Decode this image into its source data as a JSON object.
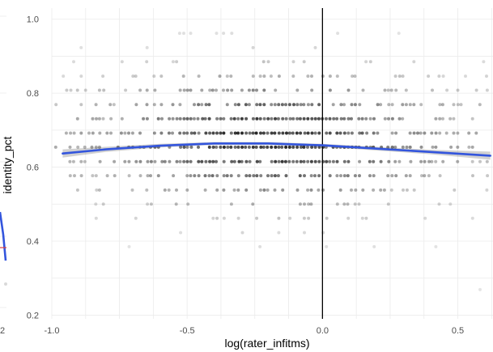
{
  "chart_data": {
    "type": "scatter",
    "title": "",
    "xlabel": "log(rater_infitms)",
    "ylabel": "identity_pct",
    "xlim": [
      -1.0,
      0.63
    ],
    "ylim": [
      0.19,
      1.03
    ],
    "x_ticks": [
      -1.0,
      -0.5,
      0.0,
      0.5
    ],
    "x_tick_labels": [
      "-1.0",
      "-0.5",
      "0.0",
      "0.5"
    ],
    "y_ticks": [
      0.2,
      0.4,
      0.6,
      0.8,
      1.0
    ],
    "y_tick_labels": [
      "0.2",
      "0.4",
      "0.6",
      "0.8",
      "1.0"
    ],
    "grid": true,
    "vertical_reference_line_x": 0.0,
    "y_levels": [
      0.231,
      0.269,
      0.308,
      0.346,
      0.385,
      0.423,
      0.462,
      0.5,
      0.538,
      0.577,
      0.615,
      0.654,
      0.692,
      0.731,
      0.769,
      0.808,
      0.846,
      0.885,
      0.923,
      0.962,
      1.0
    ],
    "point_colour": "#000000",
    "smooth_line": {
      "colour": "#3355dd",
      "ribbon_colour": "#999999",
      "x": [
        -0.96,
        -0.8,
        -0.6,
        -0.4,
        -0.2,
        0.0,
        0.2,
        0.4,
        0.62
      ],
      "y": [
        0.637,
        0.648,
        0.658,
        0.664,
        0.664,
        0.659,
        0.65,
        0.641,
        0.631
      ],
      "se": [
        0.011,
        0.007,
        0.005,
        0.004,
        0.004,
        0.004,
        0.005,
        0.006,
        0.011
      ]
    },
    "left_panel_remnant": {
      "tick_label": "2",
      "colour": "#3355dd",
      "marker_colour": "#e04040"
    }
  }
}
